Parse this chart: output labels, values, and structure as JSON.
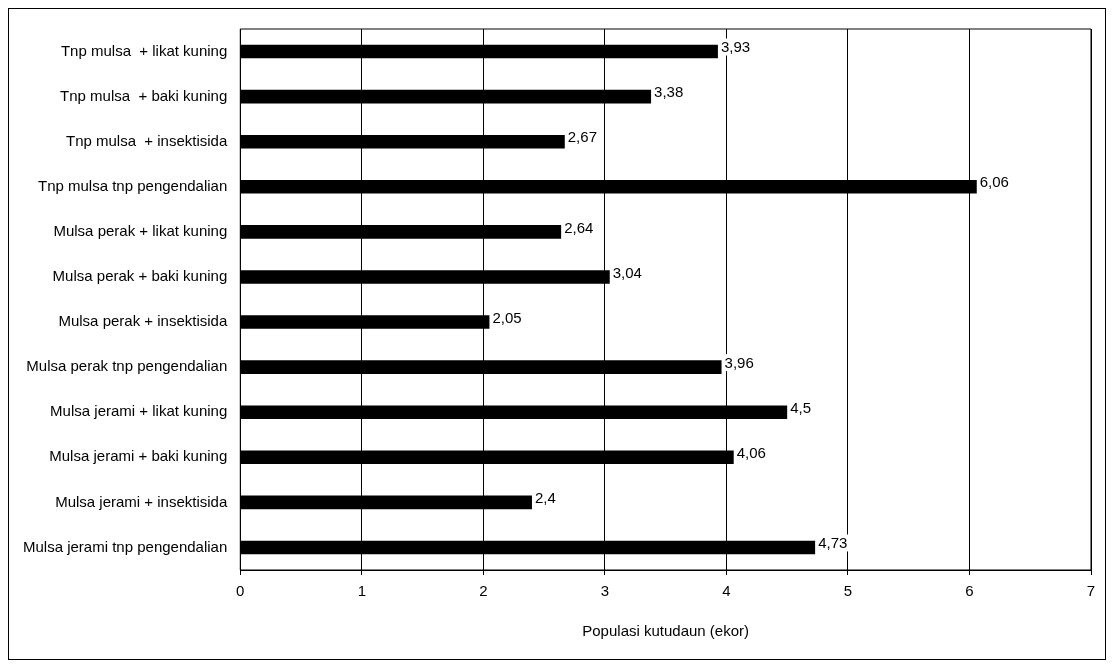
{
  "chart_data": {
    "type": "bar",
    "orientation": "horizontal",
    "categories": [
      "Tnp mulsa  + likat kuning",
      "Tnp mulsa  + baki kuning",
      "Tnp mulsa  + insektisida",
      "Tnp mulsa tnp pengendalian",
      "Mulsa perak + likat kuning",
      "Mulsa perak + baki kuning",
      "Mulsa perak + insektisida",
      "Mulsa perak tnp pengendalian",
      "Mulsa jerami + likat kuning",
      "Mulsa jerami + baki kuning",
      "Mulsa jerami + insektisida",
      "Mulsa jerami tnp pengendalian"
    ],
    "values": [
      3.93,
      3.38,
      2.67,
      6.06,
      2.64,
      3.04,
      2.05,
      3.96,
      4.5,
      4.06,
      2.4,
      4.73
    ],
    "value_labels": [
      "3,93",
      "3,38",
      "2,67",
      "6,06",
      "2,64",
      "3,04",
      "2,05",
      "3,96",
      "4,5",
      "4,06",
      "2,4",
      "4,73"
    ],
    "color": "#000000",
    "xlim": [
      0,
      7
    ],
    "xticks": [
      0,
      1,
      2,
      3,
      4,
      5,
      6,
      7
    ],
    "xlabel": "Populasi kutudaun (ekor)",
    "grid": "x",
    "legend": false
  }
}
